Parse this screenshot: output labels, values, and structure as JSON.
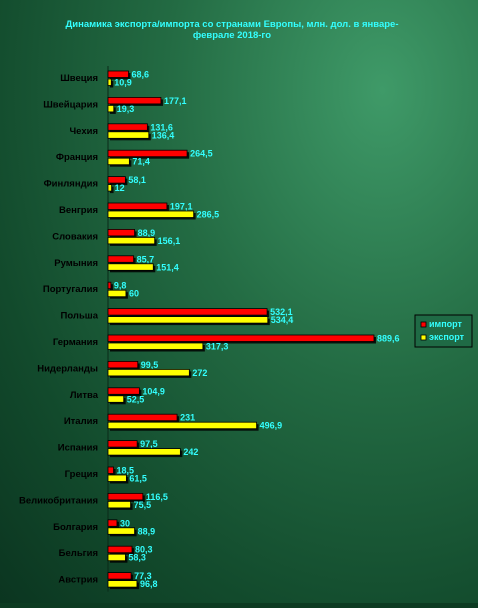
{
  "chart_data": {
    "type": "bar",
    "orientation": "horizontal",
    "title_line1": "Динамика экспорта/импорта со странами Европы, млн. дол. в январе-",
    "title_line2": "феврале 2018-го",
    "categories": [
      "Швеция",
      "Швейцария",
      "Чехия",
      "Франция",
      "Финляндия",
      "Венгрия",
      "Словакия",
      "Румыния",
      "Португалия",
      "Польша",
      "Германия",
      "Нидерланды",
      "Литва",
      "Италия",
      "Испания",
      "Греция",
      "Великобритания",
      "Болгария",
      "Бельгия",
      "Австрия"
    ],
    "series": [
      {
        "name": "импорт",
        "color": "#ff0000",
        "values": [
          68.6,
          177.1,
          131.6,
          264.5,
          58.1,
          197.1,
          88.9,
          85.7,
          9.8,
          532.1,
          889.6,
          99.5,
          104.9,
          231,
          97.5,
          18.5,
          116.5,
          30,
          80.3,
          77.3
        ],
        "labels": [
          "68,6",
          "177,1",
          "131,6",
          "264,5",
          "58,1",
          "197,1",
          "88,9",
          "85,7",
          "9,8",
          "532,1",
          "889,6",
          "99,5",
          "104,9",
          "231",
          "97,5",
          "18,5",
          "116,5",
          "30",
          "80,3",
          "77,3"
        ]
      },
      {
        "name": "экспорт",
        "color": "#ffff00",
        "values": [
          10.9,
          19.3,
          136.4,
          71.4,
          12,
          286.5,
          156.1,
          151.4,
          60,
          534.4,
          317.3,
          272,
          52.5,
          496.9,
          242,
          61.5,
          75.5,
          88.9,
          58.3,
          96.8
        ],
        "labels": [
          "10,9",
          "19,3",
          "136,4",
          "71,4",
          "12",
          "286,5",
          "156,1",
          "151,4",
          "60",
          "534,4",
          "317,3",
          "272",
          "52,5",
          "496,9",
          "242",
          "61,5",
          "75,5",
          "88,9",
          "58,3",
          "96,8"
        ]
      }
    ],
    "legend_position": "right",
    "grid": false,
    "colors": {
      "title": "#33ffff",
      "category_label": "#000000",
      "value_label": "#33ffff"
    }
  }
}
